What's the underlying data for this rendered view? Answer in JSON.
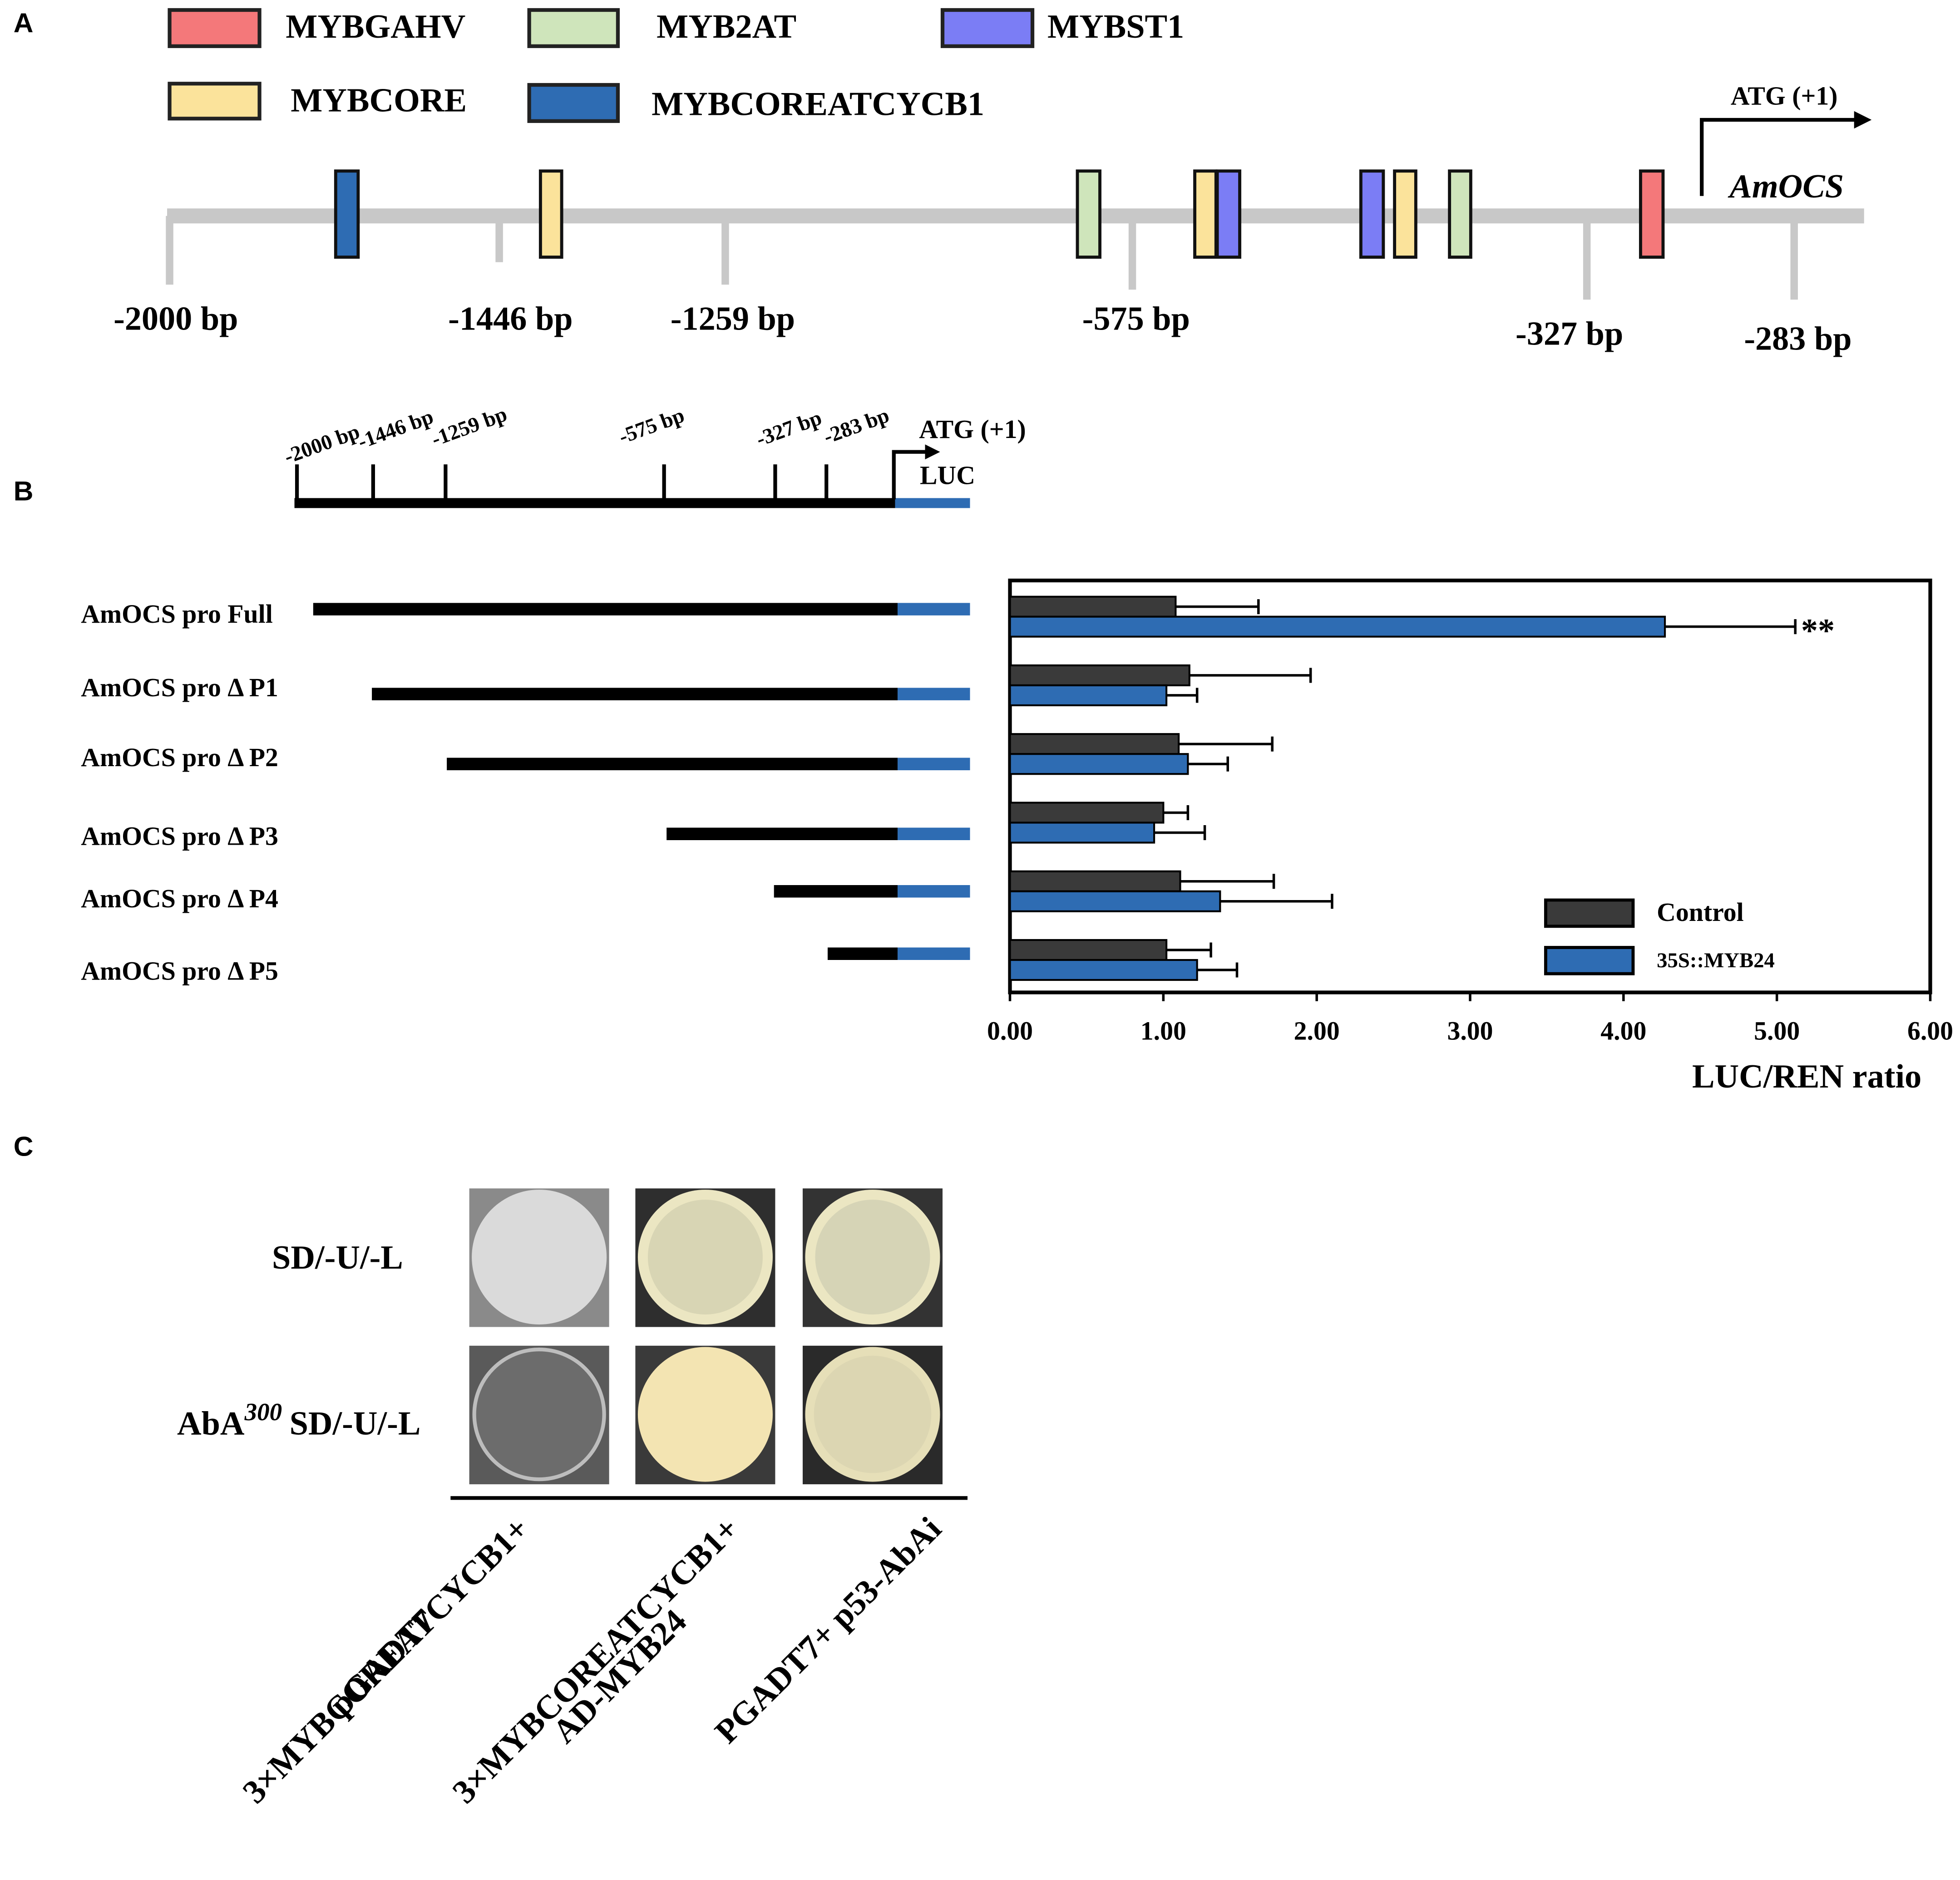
{
  "panel_a": {
    "letter": "A",
    "legend": [
      {
        "label": "MYBGAHV",
        "color": "#f4787a"
      },
      {
        "label": "MYB2AT",
        "color": "#cfe5bb"
      },
      {
        "label": "MYBST1",
        "color": "#7b7df5"
      },
      {
        "label": "MYBCORE",
        "color": "#fbe39b"
      },
      {
        "label": "MYBCOREATCYCB1",
        "color": "#2e6cb3"
      }
    ],
    "positions": [
      "-2000 bp",
      "-1446 bp",
      "-1259 bp",
      "-575 bp",
      "-327 bp",
      "-283 bp"
    ],
    "start": "ATG (+1)",
    "gene": "AmOCS"
  },
  "panel_b": {
    "letter": "B",
    "positions": [
      "-2000 bp",
      "-1446 bp",
      "-1259 bp",
      "-575 bp",
      "-327 bp",
      "-283 bp"
    ],
    "start": "ATG (+1)",
    "reporter": "LUC"
  },
  "chart_data": {
    "type": "hbar",
    "categories": [
      "AmOCS pro Full",
      "AmOCS pro Δ P1",
      "AmOCS pro Δ P2",
      "AmOCS pro Δ P3",
      "AmOCS pro Δ P4",
      "AmOCS pro Δ P5"
    ],
    "series": [
      {
        "name": "Control",
        "color": "#3a3a3a",
        "values": [
          1.08,
          1.17,
          1.1,
          1.0,
          1.11,
          1.02
        ],
        "errors": [
          0.54,
          0.79,
          0.61,
          0.16,
          0.61,
          0.29
        ]
      },
      {
        "name": "35S::MYB24",
        "color": "#2e6cb3",
        "values": [
          4.27,
          1.02,
          1.16,
          0.94,
          1.37,
          1.22
        ],
        "errors": [
          0.85,
          0.2,
          0.26,
          0.33,
          0.73,
          0.26
        ]
      }
    ],
    "xlim": [
      0,
      6
    ],
    "xticks": [
      {
        "value": 0,
        "label": "0.00"
      },
      {
        "value": 1,
        "label": "1.00"
      },
      {
        "value": 2,
        "label": "2.00"
      },
      {
        "value": 3,
        "label": "3.00"
      },
      {
        "value": 4,
        "label": "4.00"
      },
      {
        "value": 5,
        "label": "5.00"
      },
      {
        "value": 6,
        "label": "6.00"
      }
    ],
    "xlabel": "LUC/REN ratio",
    "annotation": "**",
    "legend": "lower right"
  },
  "panel_c": {
    "letter": "C",
    "rows": [
      "SD/-U/-L",
      {
        "prefix": "AbA",
        "superscript": "300",
        "rest": "SD/-U/-L"
      }
    ],
    "columns": [
      [
        "3×MYBCOREATCYCB1+",
        "pGADT7"
      ],
      [
        "3×MYBCOREATCYCB1+",
        "AD-MYB24"
      ],
      [
        "PGADT7+ p53-AbAi"
      ]
    ]
  }
}
